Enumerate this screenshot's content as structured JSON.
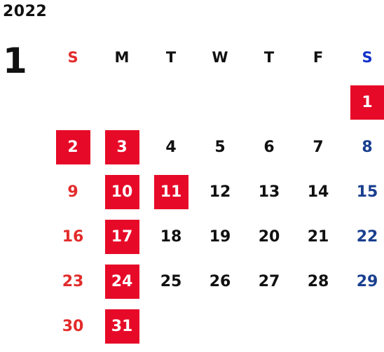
{
  "calendar": {
    "year": "2022",
    "month": "1",
    "weekdays": [
      {
        "label": "S",
        "kind": "sun"
      },
      {
        "label": "M",
        "kind": "wd"
      },
      {
        "label": "T",
        "kind": "wd"
      },
      {
        "label": "W",
        "kind": "wd"
      },
      {
        "label": "T",
        "kind": "wd"
      },
      {
        "label": "F",
        "kind": "wd"
      },
      {
        "label": "S",
        "kind": "sat"
      }
    ],
    "weeks": [
      [
        "",
        "",
        "",
        "",
        "",
        "",
        "1"
      ],
      [
        "2",
        "3",
        "4",
        "5",
        "6",
        "7",
        "8"
      ],
      [
        "9",
        "10",
        "11",
        "12",
        "13",
        "14",
        "15"
      ],
      [
        "16",
        "17",
        "18",
        "19",
        "20",
        "21",
        "22"
      ],
      [
        "23",
        "24",
        "25",
        "26",
        "27",
        "28",
        "29"
      ],
      [
        "30",
        "31",
        "",
        "",
        "",
        "",
        ""
      ]
    ],
    "highlighted_days": [
      "1",
      "2",
      "3",
      "10",
      "11",
      "17",
      "24",
      "31"
    ]
  },
  "colors": {
    "highlight_bg": "#e60a28",
    "sunday": "#e32b2b",
    "saturday": "#1a3f8f",
    "saturday_header": "#1233c8",
    "weekday": "#111111"
  }
}
